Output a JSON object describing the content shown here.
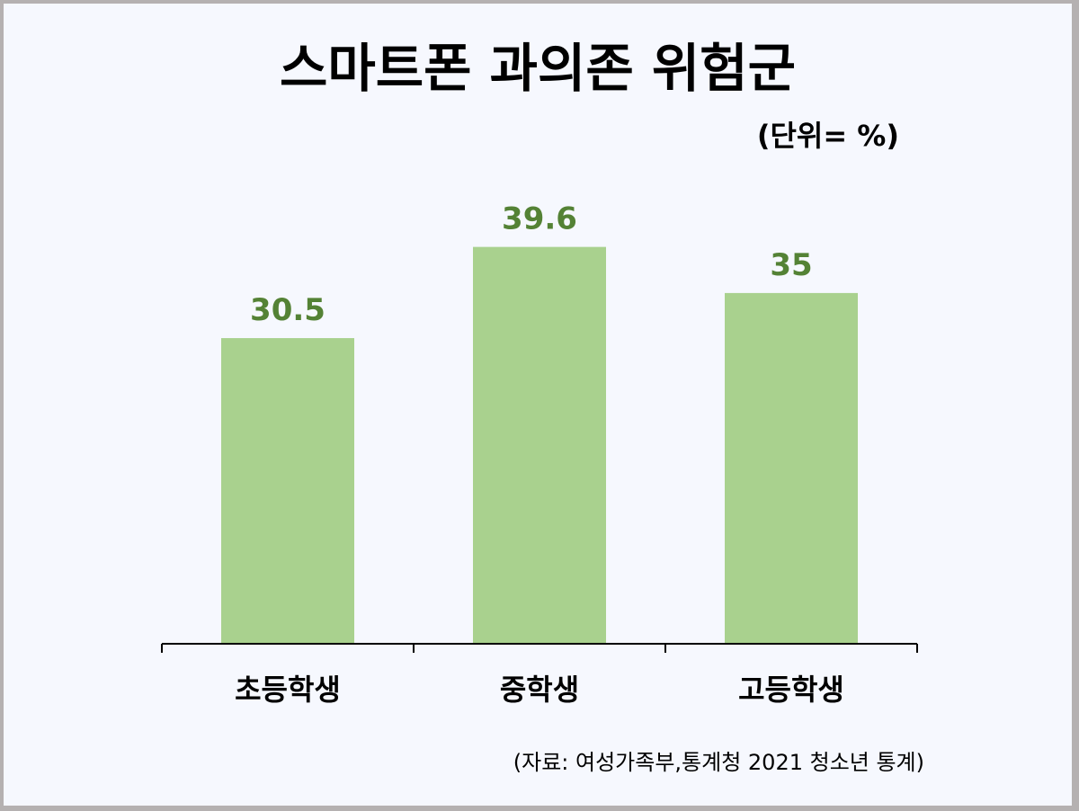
{
  "chart_data": {
    "type": "bar",
    "title": "스마트폰 과의존 위험군",
    "unit_label": "(단위= %)",
    "categories": [
      "초등학생",
      "중학생",
      "고등학생"
    ],
    "values": [
      30.5,
      39.6,
      35
    ],
    "value_labels": [
      "30.5",
      "39.6",
      "35"
    ],
    "ylim": [
      0,
      48
    ],
    "grid": false,
    "bar_color": "#a9d18e",
    "label_color": "#548235",
    "axis_color": "#000000",
    "source": "(자료: 여성가족부,통계청 2021 청소년 통계)"
  }
}
